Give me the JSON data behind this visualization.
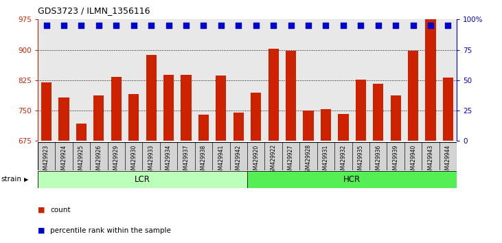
{
  "title": "GDS3723 / ILMN_1356116",
  "categories": [
    "GSM429923",
    "GSM429924",
    "GSM429925",
    "GSM429926",
    "GSM429929",
    "GSM429930",
    "GSM429933",
    "GSM429934",
    "GSM429937",
    "GSM429938",
    "GSM429941",
    "GSM429942",
    "GSM429920",
    "GSM429922",
    "GSM429927",
    "GSM429928",
    "GSM429931",
    "GSM429932",
    "GSM429935",
    "GSM429936",
    "GSM429939",
    "GSM429940",
    "GSM429943",
    "GSM429944"
  ],
  "bar_values": [
    820,
    783,
    718,
    787,
    833,
    790,
    888,
    838,
    838,
    740,
    836,
    745,
    795,
    903,
    898,
    750,
    753,
    742,
    826,
    817,
    787,
    898,
    975,
    831
  ],
  "percentile_pct": 95,
  "lcr_count": 12,
  "hcr_count": 12,
  "ymin": 675,
  "ymax": 975,
  "yticks": [
    675,
    750,
    825,
    900,
    975
  ],
  "right_yticks": [
    0,
    25,
    50,
    75,
    100
  ],
  "right_ylabels": [
    "0",
    "25",
    "50",
    "75",
    "100%"
  ],
  "bar_color": "#cc2200",
  "percentile_color": "#0000cc",
  "bar_width": 0.6,
  "lcr_color": "#bbffbb",
  "hcr_color": "#55ee55",
  "plot_bg_color": "#e8e8e8",
  "cell_bg_color": "#d4d4d4",
  "strain_label": "strain",
  "lcr_label": "LCR",
  "hcr_label": "HCR",
  "legend_count_label": "count",
  "legend_pct_label": "percentile rank within the sample"
}
